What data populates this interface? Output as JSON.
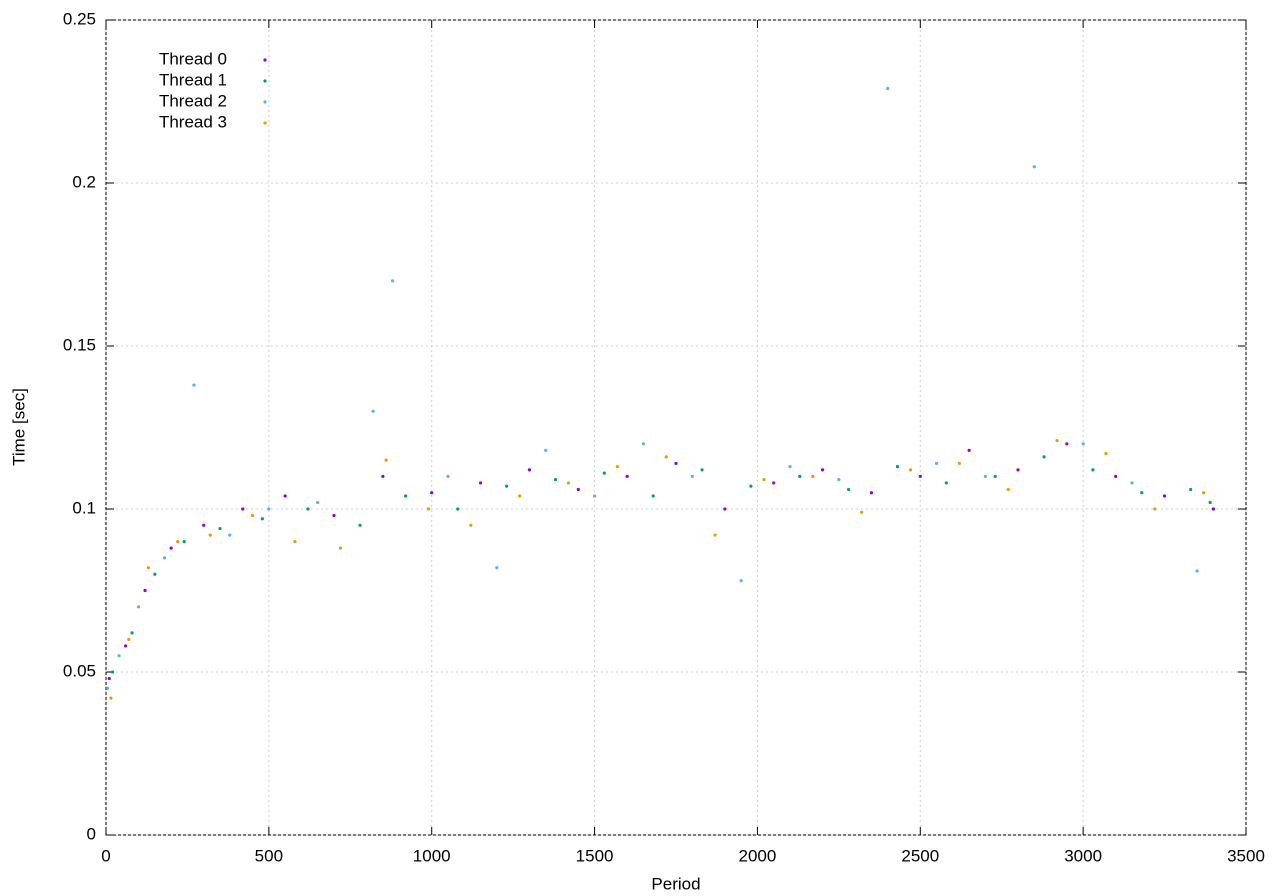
{
  "chart_data": {
    "type": "scatter",
    "xlabel": "Period",
    "ylabel": "Time [sec]",
    "xlim": [
      0,
      3500
    ],
    "ylim": [
      0,
      0.25
    ],
    "xticks": [
      0,
      500,
      1000,
      1500,
      2000,
      2500,
      3000,
      3500
    ],
    "yticks": [
      0,
      0.05,
      0.1,
      0.15,
      0.2,
      0.25
    ],
    "grid": true,
    "legend": "upper-left",
    "series": [
      {
        "name": "Thread 0",
        "color": "#9400d3",
        "x": [
          10,
          60,
          120,
          200,
          300,
          420,
          550,
          700,
          850,
          1000,
          1150,
          1300,
          1450,
          1600,
          1750,
          1900,
          2050,
          2200,
          2350,
          2500,
          2650,
          2800,
          2950,
          3100,
          3250,
          3400
        ],
        "values": [
          0.048,
          0.058,
          0.075,
          0.088,
          0.095,
          0.1,
          0.104,
          0.098,
          0.11,
          0.105,
          0.108,
          0.112,
          0.106,
          0.11,
          0.114,
          0.1,
          0.108,
          0.112,
          0.105,
          0.11,
          0.118,
          0.112,
          0.12,
          0.11,
          0.104,
          0.1
        ]
      },
      {
        "name": "Thread 1",
        "color": "#009e73",
        "x": [
          20,
          80,
          150,
          240,
          350,
          480,
          620,
          780,
          920,
          1080,
          1230,
          1380,
          1530,
          1680,
          1830,
          1980,
          2130,
          2280,
          2430,
          2580,
          2730,
          2880,
          3030,
          3180,
          3330,
          3390
        ],
        "values": [
          0.05,
          0.062,
          0.08,
          0.09,
          0.094,
          0.097,
          0.1,
          0.095,
          0.104,
          0.1,
          0.107,
          0.109,
          0.111,
          0.104,
          0.112,
          0.107,
          0.11,
          0.106,
          0.113,
          0.108,
          0.11,
          0.116,
          0.112,
          0.105,
          0.106,
          0.102
        ]
      },
      {
        "name": "Thread 2",
        "color": "#56b4e9",
        "x": [
          5,
          40,
          100,
          180,
          270,
          380,
          500,
          650,
          820,
          880,
          1050,
          1200,
          1350,
          1500,
          1650,
          1800,
          1950,
          2100,
          2250,
          2400,
          2550,
          2700,
          2850,
          3000,
          3150,
          3350
        ],
        "values": [
          0.045,
          0.055,
          0.07,
          0.085,
          0.138,
          0.092,
          0.1,
          0.102,
          0.13,
          0.17,
          0.11,
          0.082,
          0.118,
          0.104,
          0.12,
          0.11,
          0.078,
          0.113,
          0.109,
          0.229,
          0.114,
          0.11,
          0.205,
          0.12,
          0.108,
          0.081
        ]
      },
      {
        "name": "Thread 3",
        "color": "#e69f00",
        "x": [
          15,
          70,
          130,
          220,
          320,
          450,
          580,
          720,
          860,
          990,
          1120,
          1270,
          1420,
          1570,
          1720,
          1870,
          2020,
          2170,
          2320,
          2470,
          2620,
          2770,
          2920,
          3070,
          3220,
          3370
        ],
        "values": [
          0.042,
          0.06,
          0.082,
          0.09,
          0.092,
          0.098,
          0.09,
          0.088,
          0.115,
          0.1,
          0.095,
          0.104,
          0.108,
          0.113,
          0.116,
          0.092,
          0.109,
          0.11,
          0.099,
          0.112,
          0.114,
          0.106,
          0.121,
          0.117,
          0.1,
          0.105
        ]
      }
    ]
  }
}
